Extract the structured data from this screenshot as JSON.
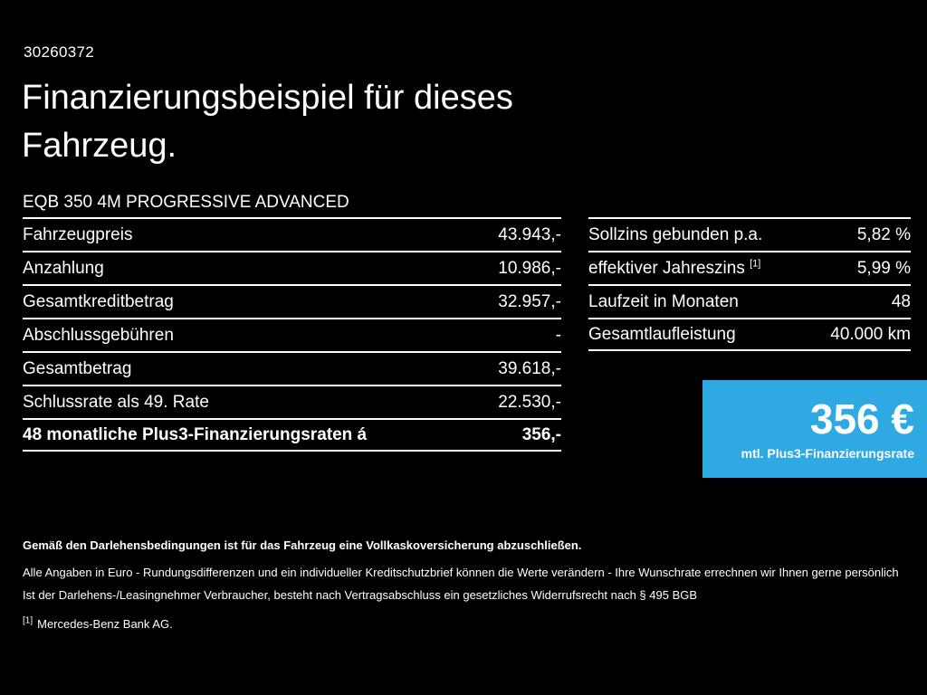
{
  "page": {
    "id_number": "30260372",
    "title": "Finanzierungsbeispiel für dieses Fahrzeug.",
    "vehicle": "EQB 350 4M PROGRESSIVE ADVANCED"
  },
  "colors": {
    "background": "#000000",
    "text": "#ffffff",
    "accent_blue": "#2fa9e1"
  },
  "tables": {
    "left": {
      "rows": [
        {
          "label": "Fahrzeugpreis",
          "value": "43.943,-"
        },
        {
          "label": "Anzahlung",
          "value": "10.986,-"
        },
        {
          "label": "Gesamtkreditbetrag",
          "value": "32.957,-"
        },
        {
          "label": "Abschlussgebühren",
          "value": "-"
        },
        {
          "label": "Gesamtbetrag",
          "value": "39.618,-"
        },
        {
          "label": "Schlussrate als 49. Rate",
          "value": "22.530,-"
        },
        {
          "label": "48 monatliche Plus3-Finanzierungsraten á",
          "value": "356,-"
        }
      ]
    },
    "right": {
      "rows": [
        {
          "label": "Sollzins gebunden p.a.",
          "value": "5,82 %"
        },
        {
          "label": "effektiver Jahreszins",
          "footnote_ref": "[1]",
          "value": "5,99 %"
        },
        {
          "label": "Laufzeit in Monaten",
          "value": "48"
        },
        {
          "label": "Gesamtlaufleistung",
          "value": "40.000 km"
        }
      ]
    }
  },
  "rate_box": {
    "amount": "356 €",
    "caption": "mtl. Plus3-Finanzierungsrate"
  },
  "footer": {
    "disclaimer_bold": "Gemäß den Darlehensbedingungen ist für das Fahrzeug eine Vollkaskoversicherung abzuschließen.",
    "disclaimer_line2": "Alle Angaben in Euro - Rundungsdifferenzen und ein individueller Kreditschutzbrief können die Werte verändern - Ihre Wunschrate errechnen wir Ihnen gerne persönlich",
    "disclaimer_line3": "Ist der Darlehens-/Leasingnehmer Verbraucher, besteht nach Vertragsabschluss ein gesetzliches Widerrufsrecht nach § 495 BGB",
    "footnote_ref": "[1]",
    "footnote_text": "Mercedes-Benz Bank AG."
  }
}
